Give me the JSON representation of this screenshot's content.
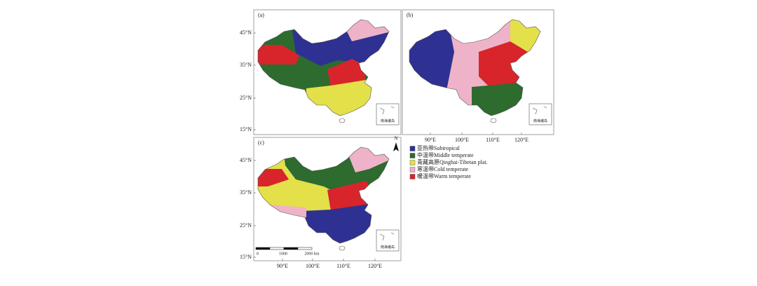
{
  "panels": [
    {
      "label": "(a)",
      "lat_labels": [
        "45°N",
        "35°N",
        "25°N",
        "15°N"
      ]
    },
    {
      "label": "(b)",
      "lon_labels": [
        "90°E",
        "100°E",
        "110°E",
        "120°E"
      ]
    },
    {
      "label": "(c)",
      "lat_labels": [
        "45°N",
        "35°N",
        "25°N",
        "15°N"
      ],
      "lon_labels": [
        "90°E",
        "100°E",
        "110°E",
        "120°E"
      ],
      "scale_labels": [
        "0",
        "1000",
        "2000 km"
      ]
    }
  ],
  "inset_label": "南海诸岛",
  "north": "N",
  "legend": [
    {
      "label": "亚热带Subtropical",
      "color": "#2e3192"
    },
    {
      "label": "中温带Middle temperate",
      "color": "#2d6b2f"
    },
    {
      "label": "青藏高原Qinghai-Tibetan plat.",
      "color": "#e3e04a"
    },
    {
      "label": "寒温带Cold temperate",
      "color": "#eeb3c8"
    },
    {
      "label": "暖温带Warm temperate",
      "color": "#d7252b"
    }
  ]
}
